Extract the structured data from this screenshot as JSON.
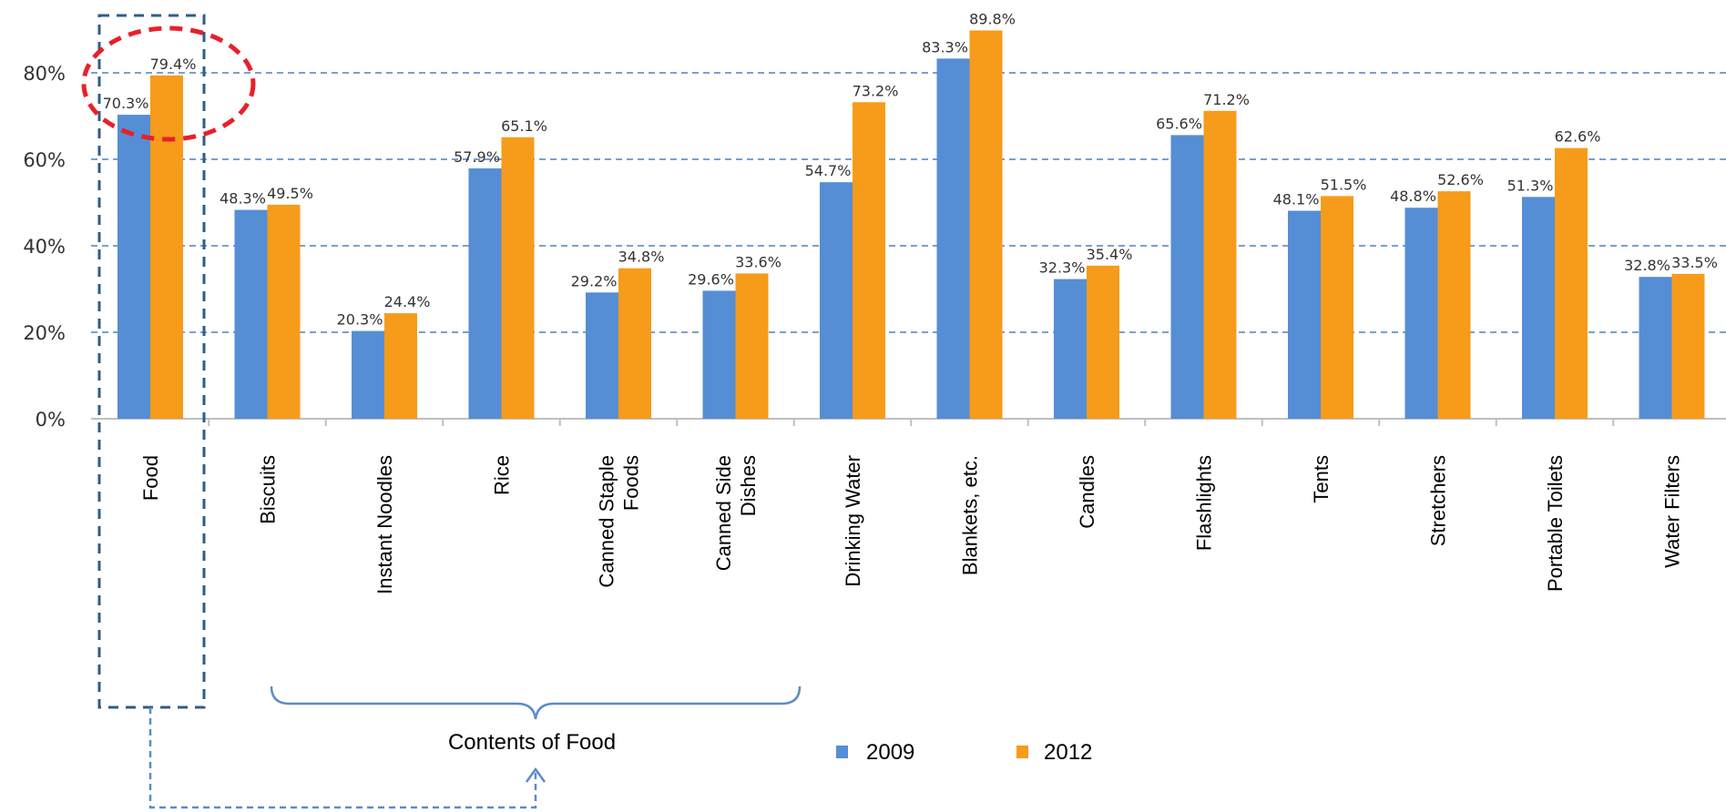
{
  "chart_data": {
    "type": "bar",
    "categories": [
      "Food",
      "Biscuits",
      "Instant Noodles",
      "Rice",
      "Canned Staple Foods",
      "Canned Side Dishes",
      "Drinking Water",
      "Blankets, etc.",
      "Candles",
      "Flashlights",
      "Tents",
      "Stretchers",
      "Portable Toilets",
      "Water Filters"
    ],
    "category_label_lines": [
      [
        "Food"
      ],
      [
        "Biscuits"
      ],
      [
        "Instant Noodles"
      ],
      [
        "Rice"
      ],
      [
        "Canned Staple",
        "Foods"
      ],
      [
        "Canned Side",
        "Dishes"
      ],
      [
        "Drinking Water"
      ],
      [
        "Blankets, etc."
      ],
      [
        "Candles"
      ],
      [
        "Flashlights"
      ],
      [
        "Tents"
      ],
      [
        "Stretchers"
      ],
      [
        "Portable Toilets"
      ],
      [
        "Water Filters"
      ]
    ],
    "series": [
      {
        "name": "2009",
        "color": "#558ed5",
        "values": [
          70.3,
          48.3,
          20.3,
          57.9,
          29.2,
          29.6,
          54.7,
          83.3,
          32.3,
          65.6,
          48.1,
          48.8,
          51.3,
          32.8
        ],
        "labels": [
          "70.3%",
          "48.3%",
          "20.3%",
          "57.9%",
          "29.2%",
          "29.6%",
          "54.7%",
          "83.3%",
          "32.3%",
          "65.6%",
          "48.1%",
          "48.8%",
          "51.3%",
          "32.8%"
        ]
      },
      {
        "name": "2012",
        "color": "#f79b1a",
        "values": [
          79.4,
          49.5,
          24.4,
          65.1,
          34.8,
          33.6,
          73.2,
          89.8,
          35.4,
          71.2,
          51.5,
          52.6,
          62.6,
          33.5
        ],
        "labels": [
          "79.4%",
          "49.5%",
          "24.4%",
          "65.1%",
          "34.8%",
          "33.6%",
          "73.2%",
          "89.8%",
          "35.4%",
          "71.2%",
          "51.5%",
          "52.6%",
          "62.6%",
          "33.5%"
        ]
      }
    ],
    "y_ticks": [
      "0%",
      "20%",
      "40%",
      "60%",
      "80%"
    ],
    "y_tick_values": [
      0,
      20,
      40,
      60,
      80
    ],
    "ylim": [
      0,
      90
    ],
    "grid": true,
    "grid_style": "dashed",
    "legend_position": "bottom",
    "annotations": {
      "bracket_text": "Contents of Food",
      "highlight": "Food"
    }
  },
  "colors": {
    "series_2009": "#558ed5",
    "series_2012": "#f79b1a",
    "grid": "#4f81bd",
    "highlight_circle": "#e8202a",
    "frame": "#2e5c8a"
  }
}
